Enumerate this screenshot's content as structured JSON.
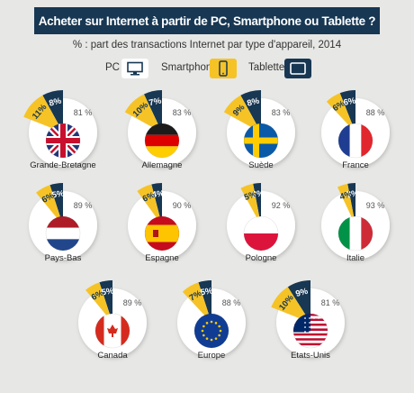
{
  "title": "Acheter sur Internet à partir de PC, Smartphone ou Tablette ?",
  "subtitle": "% : part des transactions Internet par type d'appareil, 2014",
  "legend": {
    "pc": "PC",
    "smartphone": "Smartphone",
    "tablette": "Tablette"
  },
  "colors": {
    "pc": "#ffffff",
    "smartphone": "#f6c326",
    "tablette": "#173753",
    "background": "#e7e7e5",
    "banner": "#173753"
  },
  "chart_data": {
    "type": "pie",
    "series_names": [
      "PC",
      "Smartphone",
      "Tablette"
    ],
    "countries": [
      {
        "name": "Grande-Bretagne",
        "pc": 81,
        "smartphone": 11,
        "tablette": 8,
        "flag": "uk"
      },
      {
        "name": "Allemagne",
        "pc": 83,
        "smartphone": 10,
        "tablette": 7,
        "flag": "de"
      },
      {
        "name": "Suède",
        "pc": 83,
        "smartphone": 9,
        "tablette": 8,
        "flag": "se"
      },
      {
        "name": "France",
        "pc": 88,
        "smartphone": 6,
        "tablette": 6,
        "flag": "fr"
      },
      {
        "name": "Pays-Bas",
        "pc": 89,
        "smartphone": 6,
        "tablette": 5,
        "flag": "nl"
      },
      {
        "name": "Espagne",
        "pc": 90,
        "smartphone": 6,
        "tablette": 4,
        "flag": "es"
      },
      {
        "name": "Pologne",
        "pc": 92,
        "smartphone": 5,
        "tablette": 3,
        "flag": "pl"
      },
      {
        "name": "Italie",
        "pc": 93,
        "smartphone": 4,
        "tablette": 3,
        "flag": "it"
      },
      {
        "name": "Canada",
        "pc": 89,
        "smartphone": 6,
        "tablette": 5,
        "flag": "ca"
      },
      {
        "name": "Europe",
        "pc": 88,
        "smartphone": 7,
        "tablette": 5,
        "flag": "eu"
      },
      {
        "name": "Etats-Unis",
        "pc": 81,
        "smartphone": 10,
        "tablette": 9,
        "flag": "us"
      }
    ],
    "unit": "%"
  }
}
